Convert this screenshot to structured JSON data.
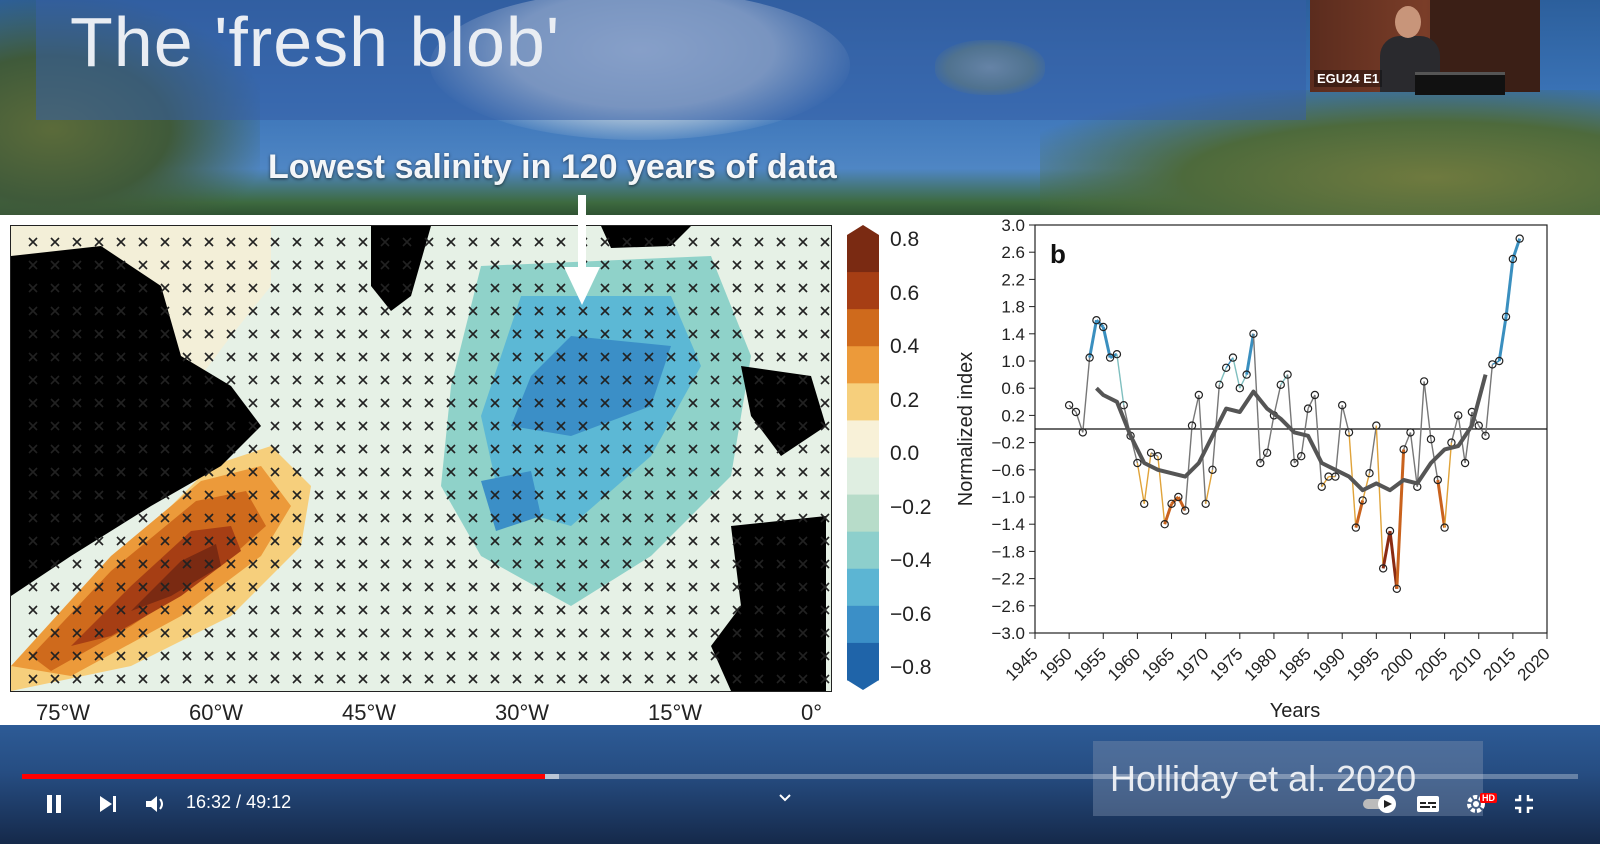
{
  "slide": {
    "title": "The 'fresh blob'",
    "subtitle": "Lowest salinity in 120 years of data",
    "citation": "Holliday et al. 2020"
  },
  "map": {
    "colorbar_ticks": [
      "0.8",
      "0.6",
      "0.4",
      "0.2",
      "0.0",
      "−0.2",
      "−0.4",
      "−0.6",
      "−0.8"
    ],
    "colorbar_colors": [
      "#7a2a12",
      "#a63e14",
      "#cf6a1c",
      "#ec9a3a",
      "#f6cf7c",
      "#f8f1d8",
      "#dfeee1",
      "#b7dcc9",
      "#8dcfcc",
      "#5cb5d3",
      "#3b8fc7",
      "#1f64a9"
    ],
    "lon_labels": [
      "75°W",
      "60°W",
      "45°W",
      "30°W",
      "15°W",
      "0°"
    ]
  },
  "chart_data": {
    "type": "line",
    "panel_label": "b",
    "xlabel": "Years",
    "ylabel": "Normalized index",
    "xlim": [
      1945,
      2020
    ],
    "ylim": [
      -3.0,
      3.0
    ],
    "x_ticks": [
      1945,
      1950,
      1955,
      1960,
      1965,
      1970,
      1975,
      1980,
      1985,
      1990,
      1995,
      2000,
      2005,
      2010,
      2015,
      2020
    ],
    "y_ticks": [
      "3.0",
      "2.6",
      "2.2",
      "1.8",
      "1.4",
      "1.0",
      "0.6",
      "0.2",
      "−0.2",
      "−0.6",
      "−1.0",
      "−1.4",
      "−1.8",
      "−2.2",
      "−2.6",
      "−3.0"
    ],
    "zero_line": 0,
    "series": [
      {
        "x": [
          1950,
          1951,
          1952,
          1953,
          1954,
          1955,
          1956,
          1957,
          1958,
          1959,
          1960,
          1961,
          1962,
          1963,
          1964,
          1965,
          1966,
          1967,
          1968,
          1969,
          1970,
          1971,
          1972,
          1973,
          1974,
          1975,
          1976,
          1977,
          1978,
          1979,
          1980,
          1981,
          1982,
          1983,
          1984,
          1985,
          1986,
          1987,
          1988,
          1989,
          1990,
          1991,
          1992,
          1993,
          1994,
          1995,
          1996,
          1997,
          1998,
          1999,
          2000,
          2001,
          2002,
          2003,
          2004,
          2005,
          2006,
          2007,
          2008,
          2009,
          2010,
          2011,
          2012,
          2013,
          2014,
          2015,
          2016
        ],
        "y": [
          0.35,
          0.25,
          -0.05,
          1.05,
          1.6,
          1.5,
          1.05,
          1.1,
          0.35,
          -0.1,
          -0.5,
          -1.1,
          -0.35,
          -0.4,
          -1.4,
          -1.1,
          -1.0,
          -1.2,
          0.05,
          0.5,
          -1.1,
          -0.6,
          0.65,
          0.9,
          1.05,
          0.6,
          0.8,
          1.4,
          -0.5,
          -0.35,
          0.2,
          0.65,
          0.8,
          -0.5,
          -0.4,
          0.3,
          0.5,
          -0.85,
          -0.7,
          -0.7,
          0.35,
          -0.05,
          -1.45,
          -1.05,
          -0.65,
          0.05,
          -2.05,
          -1.5,
          -2.35,
          -0.3,
          -0.05,
          -0.85,
          0.7,
          -0.15,
          -0.75,
          -1.45,
          -0.2,
          0.2,
          -0.5,
          0.25,
          0.05,
          -0.1,
          0.95,
          1.0,
          1.65,
          2.5,
          2.8
        ]
      },
      {
        "name": "smoothed",
        "x": [
          1954,
          1955,
          1957,
          1959,
          1961,
          1963,
          1965,
          1967,
          1969,
          1971,
          1973,
          1975,
          1977,
          1979,
          1981,
          1983,
          1985,
          1987,
          1989,
          1991,
          1993,
          1995,
          1997,
          1999,
          2001,
          2003,
          2005,
          2007,
          2009,
          2011
        ],
        "y": [
          0.6,
          0.5,
          0.4,
          -0.1,
          -0.5,
          -0.6,
          -0.65,
          -0.7,
          -0.5,
          -0.1,
          0.3,
          0.25,
          0.55,
          0.3,
          0.15,
          -0.05,
          -0.1,
          -0.5,
          -0.6,
          -0.7,
          -0.9,
          -0.8,
          -0.9,
          -0.75,
          -0.8,
          -0.5,
          -0.3,
          -0.25,
          0.05,
          0.8
        ]
      }
    ]
  },
  "player": {
    "time_current": "16:32",
    "time_separator": " / ",
    "time_total": "49:12",
    "progress_fraction": 0.336,
    "buffer_fraction": 0.345,
    "hd_badge": "HD",
    "pip_label": "EGU24 E1",
    "accent_color": "#ff0000"
  }
}
